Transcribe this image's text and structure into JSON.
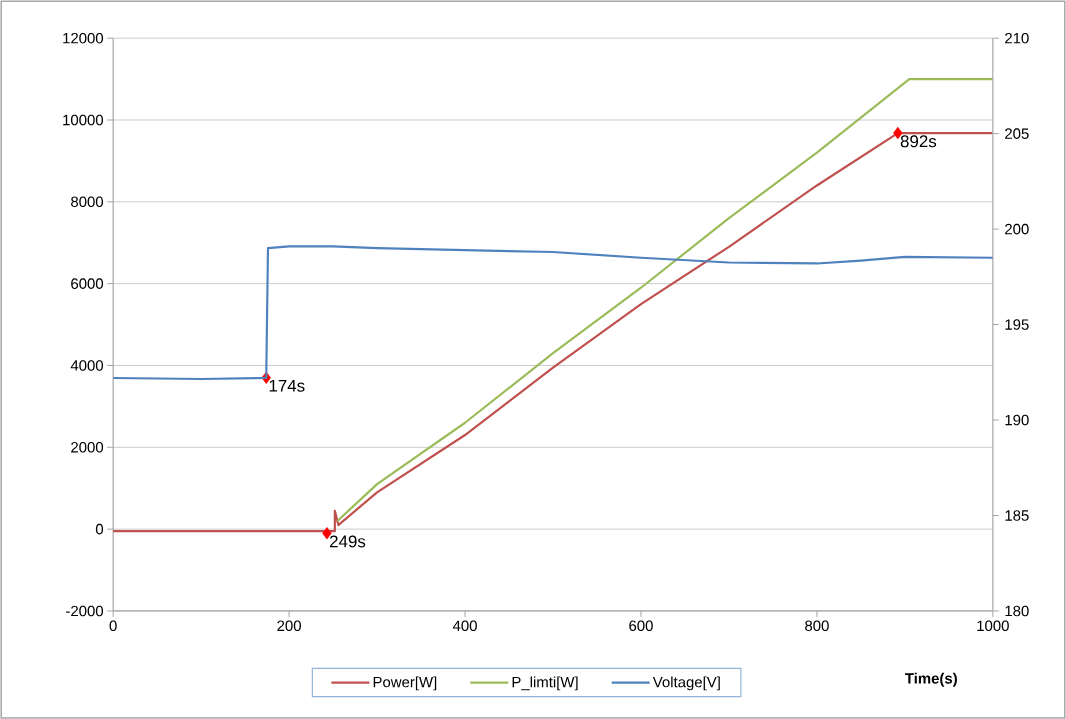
{
  "chart_data": {
    "type": "line",
    "xlabel": "Time(s)",
    "xlim": [
      0,
      1000
    ],
    "ylim": [
      -2000,
      12000
    ],
    "y2lim": [
      180,
      210
    ],
    "xticks": [
      0,
      200,
      400,
      600,
      800,
      1000
    ],
    "yticks": [
      -2000,
      0,
      2000,
      4000,
      6000,
      8000,
      10000,
      12000
    ],
    "y2ticks": [
      180,
      185,
      190,
      195,
      200,
      205,
      210
    ],
    "grid": "y",
    "legend": "bottom",
    "series": [
      {
        "name": "Power[W]",
        "color": "#c0504d",
        "x": [
          0,
          249,
          252,
          252,
          256,
          300,
          400,
          500,
          600,
          700,
          800,
          892,
          1000
        ],
        "values": [
          -50,
          -50,
          -50,
          450,
          100,
          900,
          2300,
          3950,
          5500,
          6900,
          8400,
          9680,
          9680
        ]
      },
      {
        "name": "P_limti[W]",
        "color": "#9bbb59",
        "x": [
          255,
          300,
          400,
          500,
          600,
          700,
          800,
          905,
          1000
        ],
        "values": [
          200,
          1100,
          2600,
          4300,
          5900,
          7600,
          9200,
          11000,
          11000
        ]
      },
      {
        "name": "Voltage[V]",
        "color": "#4f81bd",
        "axis": "y2",
        "x": [
          0,
          100,
          174,
          176,
          200,
          250,
          300,
          400,
          500,
          600,
          700,
          800,
          850,
          900,
          1000
        ],
        "values": [
          192.2,
          192.15,
          192.2,
          199.0,
          199.1,
          199.1,
          199.0,
          198.9,
          198.8,
          198.5,
          198.25,
          198.2,
          198.35,
          198.55,
          198.5
        ]
      },
      {
        "type": "scatter",
        "marker": "diamond",
        "color": "#ff0000",
        "x": [
          174,
          243,
          892
        ],
        "values": [
          3700,
          -100,
          9680
        ]
      }
    ],
    "annotations": [
      {
        "text": "174s",
        "x": 174,
        "y": 3700
      },
      {
        "text": "249s",
        "x": 243,
        "y": -100
      },
      {
        "text": "892s",
        "x": 892,
        "y": 9680
      }
    ]
  }
}
